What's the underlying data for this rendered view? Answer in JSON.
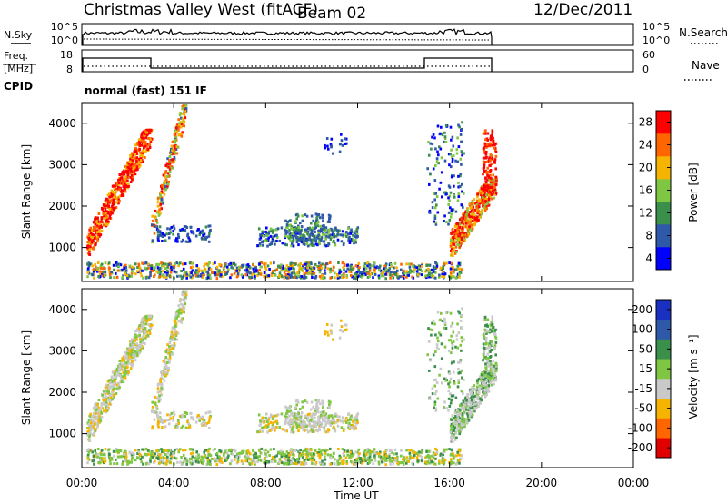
{
  "header": {
    "station": "Christmas Valley West (fitACF)",
    "beam": "Beam 02",
    "date": "12/Dec/2011"
  },
  "side_labels": {
    "nsky": "N.Sky",
    "freq_line1": "Freq.",
    "freq_line2": "[MHz]",
    "cpid": "CPID",
    "nsearch": "N.Search",
    "nave": "Nave"
  },
  "noise_panel": {
    "left_ticks": [
      "10^5",
      "10^0"
    ],
    "right_ticks": [
      "10^5",
      "10^0"
    ]
  },
  "freq_panel": {
    "left_ticks": [
      "18",
      "8"
    ],
    "right_ticks": [
      "60",
      "0"
    ]
  },
  "cpid_text": "normal (fast) 151 IF",
  "colors": {
    "power": [
      "#0000ff",
      "#2e58a8",
      "#3a8f4a",
      "#7fc742",
      "#f5b400",
      "#ff6600",
      "#ff0000"
    ],
    "velocity": [
      "#e00000",
      "#ff6600",
      "#f5b400",
      "#c9c9c9",
      "#7fc742",
      "#3a8f4a",
      "#2e58a8",
      "#1a30c0"
    ]
  },
  "chart_data": [
    {
      "type": "heatmap",
      "name": "power",
      "ylabel": "Slant Range [km]",
      "xlabel": "Time UT",
      "xlim": [
        "00:00",
        "24:00"
      ],
      "x_ticks": [
        "00:00",
        "04:00",
        "08:00",
        "12:00",
        "16:00",
        "20:00",
        "00:00"
      ],
      "ylim": [
        180,
        4500
      ],
      "y_ticks": [
        "1000",
        "2000",
        "3000",
        "4000"
      ],
      "colorbar_label": "Power [dB]",
      "colorbar_ticks": [
        "4",
        "8",
        "12",
        "16",
        "20",
        "24",
        "28"
      ],
      "colorbar_range": [
        0,
        30
      ],
      "data_end_hour": 18.0
    },
    {
      "type": "heatmap",
      "name": "velocity",
      "ylabel": "Slant Range [km]",
      "xlabel": "Time UT",
      "xlim": [
        "00:00",
        "24:00"
      ],
      "x_ticks": [
        "00:00",
        "04:00",
        "08:00",
        "12:00",
        "16:00",
        "20:00",
        "00:00"
      ],
      "ylim": [
        180,
        4500
      ],
      "y_ticks": [
        "1000",
        "2000",
        "3000",
        "4000"
      ],
      "colorbar_label": "Velocity [m s⁻¹]",
      "colorbar_ticks": [
        "200",
        "100",
        "50",
        "15",
        "-15",
        "-50",
        "-100",
        "-200"
      ],
      "data_end_hour": 18.0
    }
  ]
}
